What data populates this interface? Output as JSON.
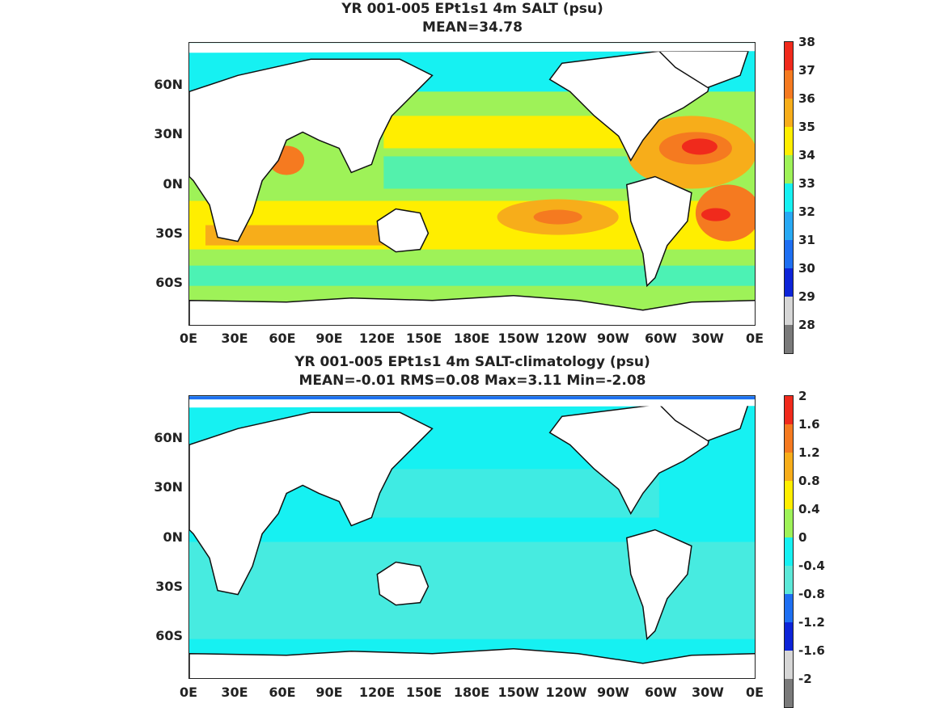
{
  "panels": [
    {
      "title_line1": "YR 001-005 EPt1s1 4m SALT (psu)",
      "title_line2": "MEAN=34.78",
      "colorbar_labels": [
        "38",
        "37",
        "36",
        "35",
        "34",
        "33",
        "32",
        "31",
        "30",
        "29",
        "28"
      ],
      "colorbar_colors": [
        "#f02a1c",
        "#f57a20",
        "#f7ad1a",
        "#ffee00",
        "#9ef258",
        "#16f1f2",
        "#28a9f4",
        "#1e6ff2",
        "#0d24d8",
        "#d6d6d6",
        "#7a7a7a"
      ]
    },
    {
      "title_line1": "YR 001-005 EPt1s1 4m SALT-climatology (psu)",
      "title_line2": "MEAN=-0.01   RMS=0.08   Max=3.11   Min=-2.08",
      "colorbar_labels": [
        "2",
        "1.6",
        "1.2",
        "0.8",
        "0.4",
        "0",
        "-0.4",
        "-0.8",
        "-1.2",
        "-1.6",
        "-2"
      ],
      "colorbar_colors": [
        "#f02a1c",
        "#f57a20",
        "#f7ad1a",
        "#ffee00",
        "#9ef258",
        "#16f1f2",
        "#5ce8d8",
        "#1e6ff2",
        "#0d24d8",
        "#d6d6d6",
        "#7a7a7a"
      ]
    }
  ],
  "lat_labels": [
    "60N",
    "30N",
    "0N",
    "30S",
    "60S"
  ],
  "lon_labels": [
    "0E",
    "30E",
    "60E",
    "90E",
    "120E",
    "150E",
    "180E",
    "150W",
    "120W",
    "90W",
    "60W",
    "30W",
    "0E"
  ]
}
